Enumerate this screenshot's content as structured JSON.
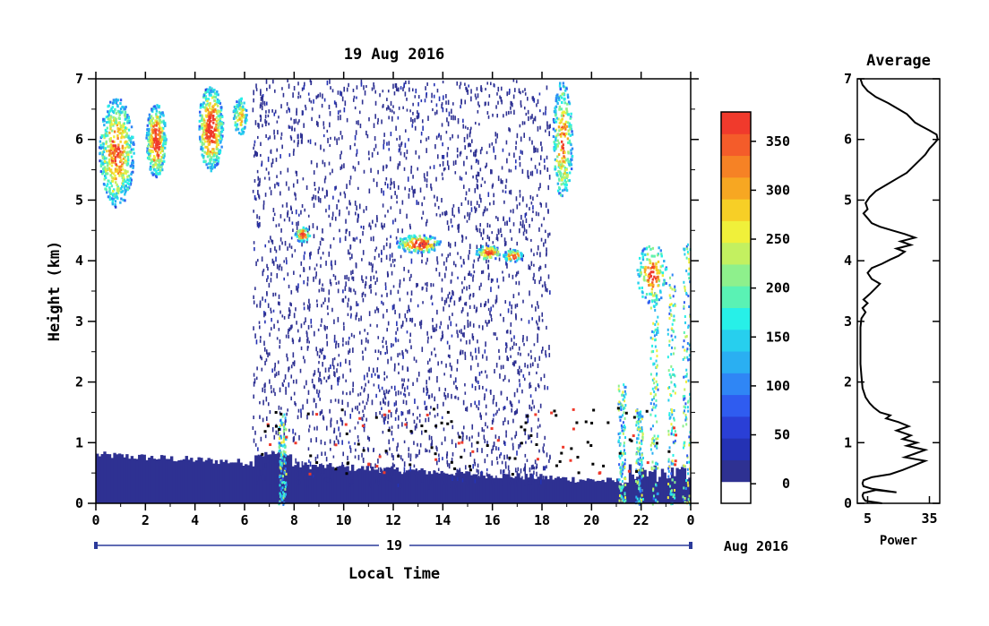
{
  "chart_data": [
    {
      "type": "heatmap",
      "title": "19 Aug 2016",
      "xlabel": "Local Time",
      "ylabel": "Height (km)",
      "x_ticks": [
        "0",
        "2",
        "4",
        "6",
        "8",
        "10",
        "12",
        "14",
        "16",
        "18",
        "20",
        "22",
        "0"
      ],
      "y_ticks": [
        "0",
        "1",
        "2",
        "3",
        "4",
        "5",
        "6",
        "7"
      ],
      "xlim": [
        0,
        24
      ],
      "ylim": [
        0,
        7
      ],
      "date_bar": {
        "day_label": "19",
        "month_year": "Aug 2016"
      },
      "colorbar": {
        "ticks": [
          "0",
          "50",
          "100",
          "150",
          "200",
          "250",
          "300",
          "350"
        ],
        "range": [
          -20,
          380
        ],
        "colors": [
          "#ffffff",
          "#2e3192",
          "#2432b4",
          "#2a3fd6",
          "#2f5cf0",
          "#2f86f5",
          "#2aaff2",
          "#27cfee",
          "#27f0e8",
          "#5af2b4",
          "#8ef08c",
          "#c3f060",
          "#f0f03a",
          "#f7cf26",
          "#f7a722",
          "#f68225",
          "#f45c2a",
          "#f03a2c"
        ]
      },
      "features": [
        {
          "name": "boundary layer",
          "time": [
            0,
            24
          ],
          "height_top_km": [
            0.8,
            0.3
          ]
        },
        {
          "name": "clutter region",
          "time": [
            6.3,
            18.3
          ],
          "height_km": [
            0.3,
            7
          ]
        },
        {
          "name": "high cloud",
          "time": [
            0,
            6.5
          ],
          "height_km": [
            4.6,
            6.9
          ]
        },
        {
          "name": "high cloud",
          "time": [
            18.2,
            19.2
          ],
          "height_km": [
            5,
            7
          ]
        },
        {
          "name": "mid-level layer",
          "time": [
            8,
            17.5
          ],
          "height_km": [
            3.9,
            4.5
          ]
        },
        {
          "name": "rain streaks",
          "time": [
            21,
            24
          ],
          "height_km": [
            0,
            4.3
          ]
        }
      ]
    },
    {
      "type": "line",
      "title": "Average",
      "xlabel": "Power",
      "x_ticks": [
        "5",
        "35"
      ],
      "y_ticks": [
        "0",
        "1",
        "2",
        "3",
        "4",
        "5",
        "6",
        "7"
      ],
      "xlim": [
        0,
        40
      ],
      "ylim": [
        0,
        7
      ],
      "points": [
        [
          12,
          0.0
        ],
        [
          4,
          0.04
        ],
        [
          3,
          0.08
        ],
        [
          2.5,
          0.13
        ],
        [
          3,
          0.17
        ],
        [
          9,
          0.22
        ],
        [
          19,
          0.18
        ],
        [
          7,
          0.24
        ],
        [
          3,
          0.28
        ],
        [
          2.5,
          0.33
        ],
        [
          3,
          0.38
        ],
        [
          7,
          0.43
        ],
        [
          16,
          0.48
        ],
        [
          22,
          0.55
        ],
        [
          28,
          0.63
        ],
        [
          33,
          0.7
        ],
        [
          23,
          0.76
        ],
        [
          28,
          0.82
        ],
        [
          33,
          0.88
        ],
        [
          24,
          0.95
        ],
        [
          29,
          1.0
        ],
        [
          22,
          1.06
        ],
        [
          26,
          1.12
        ],
        [
          19,
          1.2
        ],
        [
          25,
          1.27
        ],
        [
          20,
          1.34
        ],
        [
          14,
          1.4
        ],
        [
          16,
          1.45
        ],
        [
          11,
          1.5
        ],
        [
          8,
          1.58
        ],
        [
          6,
          1.65
        ],
        [
          4,
          1.75
        ],
        [
          2.5,
          1.9
        ],
        [
          2,
          2.1
        ],
        [
          1.5,
          2.3
        ],
        [
          1.5,
          2.6
        ],
        [
          1.5,
          2.9
        ],
        [
          2,
          3.05
        ],
        [
          4,
          3.15
        ],
        [
          2.5,
          3.22
        ],
        [
          5,
          3.3
        ],
        [
          3,
          3.36
        ],
        [
          6,
          3.45
        ],
        [
          9,
          3.55
        ],
        [
          11,
          3.62
        ],
        [
          7,
          3.7
        ],
        [
          5,
          3.8
        ],
        [
          7,
          3.88
        ],
        [
          12,
          3.95
        ],
        [
          16,
          4.02
        ],
        [
          20,
          4.08
        ],
        [
          23,
          4.15
        ],
        [
          19,
          4.2
        ],
        [
          26,
          4.26
        ],
        [
          21,
          4.32
        ],
        [
          28,
          4.38
        ],
        [
          23,
          4.44
        ],
        [
          17,
          4.5
        ],
        [
          11,
          4.56
        ],
        [
          7,
          4.62
        ],
        [
          5,
          4.7
        ],
        [
          3,
          4.78
        ],
        [
          5,
          4.85
        ],
        [
          4,
          4.95
        ],
        [
          6,
          5.05
        ],
        [
          9,
          5.15
        ],
        [
          14,
          5.25
        ],
        [
          19,
          5.35
        ],
        [
          24,
          5.45
        ],
        [
          27,
          5.55
        ],
        [
          30,
          5.65
        ],
        [
          33,
          5.75
        ],
        [
          35,
          5.85
        ],
        [
          37,
          5.92
        ],
        [
          39,
          6.0
        ],
        [
          38.5,
          6.08
        ],
        [
          35,
          6.15
        ],
        [
          31,
          6.22
        ],
        [
          28,
          6.28
        ],
        [
          26,
          6.35
        ],
        [
          24,
          6.42
        ],
        [
          20,
          6.5
        ],
        [
          15,
          6.6
        ],
        [
          9,
          6.7
        ],
        [
          5,
          6.8
        ],
        [
          2.5,
          6.9
        ],
        [
          1.5,
          7.0
        ]
      ]
    }
  ]
}
